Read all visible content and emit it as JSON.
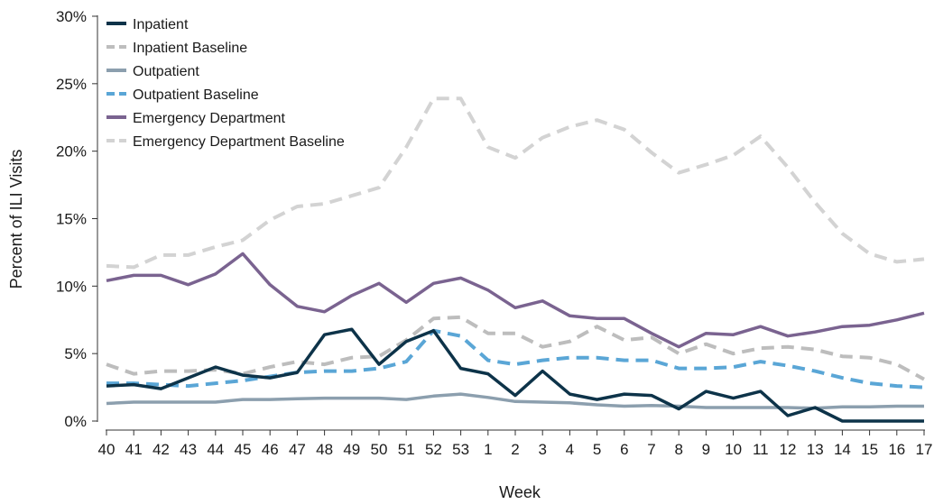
{
  "chart_data": {
    "type": "line",
    "xlabel": "Week",
    "ylabel": "Percent of ILI Visits",
    "ylim": [
      0,
      30
    ],
    "yticks": [
      0,
      5,
      10,
      15,
      20,
      25,
      30
    ],
    "ytick_labels": [
      "0%",
      "5%",
      "10%",
      "15%",
      "20%",
      "25%",
      "30%"
    ],
    "grid": false,
    "legend_position": "top-left",
    "categories": [
      "40",
      "41",
      "42",
      "43",
      "44",
      "45",
      "46",
      "47",
      "48",
      "49",
      "50",
      "51",
      "52",
      "53",
      "1",
      "2",
      "3",
      "4",
      "5",
      "6",
      "7",
      "8",
      "9",
      "10",
      "11",
      "12",
      "13",
      "14",
      "15",
      "16",
      "17"
    ],
    "series": [
      {
        "name": "Inpatient",
        "color": "#0d3349",
        "dashed": false,
        "values": [
          2.6,
          2.7,
          2.4,
          3.2,
          4.0,
          3.4,
          3.2,
          3.6,
          6.4,
          6.8,
          4.2,
          5.9,
          6.7,
          3.9,
          3.5,
          1.9,
          3.7,
          2.0,
          1.6,
          2.0,
          1.9,
          0.9,
          2.2,
          1.7,
          2.2,
          0.4,
          1.0,
          0.0,
          0.0,
          0.0,
          0.0
        ]
      },
      {
        "name": "Inpatient Baseline",
        "color": "#bdbdbd",
        "dashed": true,
        "values": [
          4.2,
          3.5,
          3.7,
          3.7,
          3.8,
          3.5,
          4.0,
          4.4,
          4.2,
          4.7,
          4.8,
          6.0,
          7.6,
          7.7,
          6.5,
          6.5,
          5.5,
          5.9,
          7.0,
          6.0,
          6.2,
          5.0,
          5.7,
          5.0,
          5.4,
          5.5,
          5.3,
          4.8,
          4.7,
          4.2,
          3.1
        ]
      },
      {
        "name": "Outpatient",
        "color": "#8c9fae",
        "dashed": false,
        "values": [
          1.3,
          1.4,
          1.4,
          1.4,
          1.4,
          1.6,
          1.6,
          1.65,
          1.7,
          1.7,
          1.7,
          1.6,
          1.85,
          2.0,
          1.75,
          1.45,
          1.4,
          1.35,
          1.2,
          1.1,
          1.15,
          1.1,
          1.0,
          1.0,
          1.0,
          1.0,
          0.95,
          1.05,
          1.05,
          1.1,
          1.1
        ]
      },
      {
        "name": "Outpatient Baseline",
        "color": "#5aa6d6",
        "dashed": true,
        "values": [
          2.8,
          2.8,
          2.7,
          2.6,
          2.8,
          3.0,
          3.3,
          3.6,
          3.7,
          3.7,
          3.9,
          4.4,
          6.7,
          6.3,
          4.5,
          4.2,
          4.5,
          4.7,
          4.7,
          4.5,
          4.5,
          3.9,
          3.9,
          4.0,
          4.4,
          4.1,
          3.7,
          3.2,
          2.8,
          2.6,
          2.5
        ]
      },
      {
        "name": "Emergency Department",
        "color": "#7a6390",
        "dashed": false,
        "values": [
          10.4,
          10.8,
          10.8,
          10.1,
          10.9,
          12.4,
          10.1,
          8.5,
          8.1,
          9.3,
          10.2,
          8.8,
          10.2,
          10.6,
          9.7,
          8.4,
          8.9,
          7.8,
          7.6,
          7.6,
          6.5,
          5.5,
          6.5,
          6.4,
          7.0,
          6.3,
          6.6,
          7.0,
          7.1,
          7.5,
          8.0
        ]
      },
      {
        "name": "Emergency Department Baseline",
        "color": "#d3d3d3",
        "dashed": true,
        "values": [
          11.5,
          11.4,
          12.3,
          12.3,
          12.9,
          13.4,
          14.9,
          15.9,
          16.1,
          16.7,
          17.3,
          20.3,
          23.9,
          23.9,
          20.3,
          19.5,
          21.0,
          21.8,
          22.3,
          21.6,
          19.9,
          18.4,
          19.0,
          19.7,
          21.1,
          18.8,
          16.2,
          13.9,
          12.4,
          11.8,
          12.0
        ]
      }
    ]
  }
}
